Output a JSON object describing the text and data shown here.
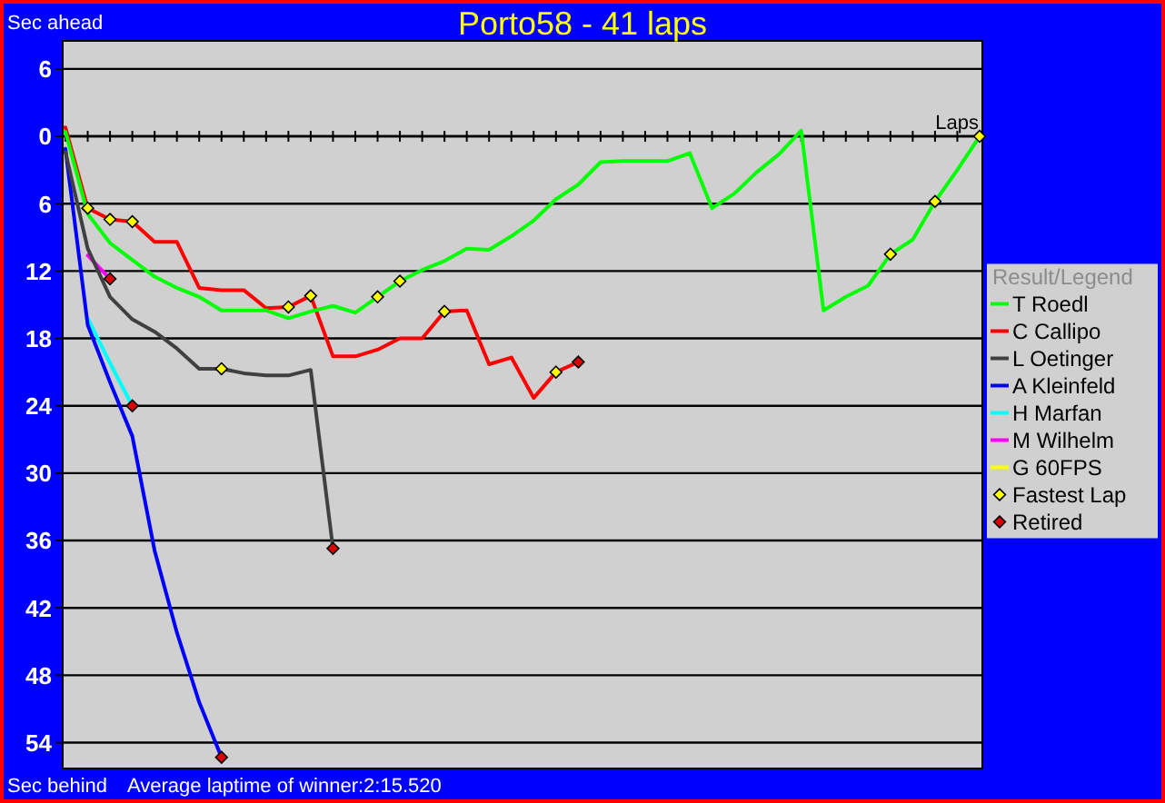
{
  "chart_data": {
    "type": "line",
    "title": "Porto58 - 41 laps",
    "xlabel": "Laps",
    "ylabel": "Sec ahead",
    "annotations": [
      "Sec behind",
      "Average laptime of winner:2:15.520"
    ],
    "categories": [
      null,
      null,
      null,
      null,
      null,
      null,
      null,
      null,
      null,
      null,
      null,
      null,
      null,
      null,
      null,
      null,
      null,
      null,
      null,
      null,
      null,
      null,
      null,
      null,
      null,
      null,
      null,
      null,
      null,
      null,
      null,
      null,
      null,
      null,
      null,
      null,
      null,
      null,
      null,
      null,
      null,
      null
    ],
    "ylim": [
      56.3,
      -8.5
    ],
    "yticks": [
      {
        "value": -6,
        "label": "6"
      },
      0,
      6,
      12,
      18,
      24,
      30,
      36,
      42,
      48,
      54
    ],
    "tick_labels": "y",
    "grid": "y",
    "legend": "right",
    "legend_title": "Result/Legend",
    "series": [
      {
        "name": "T Roedl",
        "color": "#00ff00",
        "values": [
          -0.4,
          6.9,
          9.5,
          11.0,
          12.5,
          13.5,
          14.3,
          15.5,
          15.5,
          15.5,
          16.2,
          15.6,
          15.1,
          15.7,
          14.3,
          12.9,
          11.9,
          11.1,
          10,
          10.1,
          8.9,
          7.5,
          5.6,
          4.3,
          2.3,
          2.2,
          2.2,
          2.2,
          1.5,
          6.4,
          5.1,
          3.2,
          1.6,
          -0.5,
          15.5,
          14.3,
          13.3,
          10.5,
          9.2,
          5.8,
          3.0,
          0
        ]
      },
      {
        "name": "C Callipo",
        "color": "#ff0000",
        "values": [
          -0.8,
          6.4,
          7.4,
          7.6,
          9.4,
          9.4,
          13.5,
          13.7,
          13.7,
          15.3,
          15.2,
          14.2,
          19.6,
          19.6,
          19.0,
          18.0,
          18.0,
          15.6,
          15.5,
          20.3,
          19.7,
          23.3,
          21.0,
          20.1,
          null,
          null,
          null,
          null,
          null,
          null,
          null,
          null,
          null,
          null,
          null,
          null,
          null,
          null,
          null,
          null,
          null,
          null
        ]
      },
      {
        "name": "L Oetinger",
        "color": "#404040",
        "values": [
          1.4,
          10.0,
          14.3,
          16.3,
          17.4,
          18.9,
          20.7,
          20.7,
          21.1,
          21.3,
          21.3,
          20.8,
          36.7,
          null,
          null,
          null,
          null,
          null,
          null,
          null,
          null,
          null,
          null,
          null,
          null,
          null,
          null,
          null,
          null,
          null,
          null,
          null,
          null,
          null,
          null,
          null,
          null,
          null,
          null,
          null,
          null,
          null
        ]
      },
      {
        "name": "A Kleinfeld",
        "color": "#0000ff",
        "values": [
          1.1,
          16.8,
          21.9,
          26.7,
          36.9,
          44.2,
          50.4,
          55.3,
          null,
          null,
          null,
          null,
          null,
          null,
          null,
          null,
          null,
          null,
          null,
          null,
          null,
          null,
          null,
          null,
          null,
          null,
          null,
          null,
          null,
          null,
          null,
          null,
          null,
          null,
          null,
          null,
          null,
          null,
          null,
          null,
          null,
          null
        ]
      },
      {
        "name": "H Marfan",
        "color": "#00ffff",
        "values": [
          null,
          16.2,
          20.2,
          24.0,
          null,
          null,
          null,
          null,
          null,
          null,
          null,
          null,
          null,
          null,
          null,
          null,
          null,
          null,
          null,
          null,
          null,
          null,
          null,
          null,
          null,
          null,
          null,
          null,
          null,
          null,
          null,
          null,
          null,
          null,
          null,
          null,
          null,
          null,
          null,
          null,
          null,
          null
        ]
      },
      {
        "name": "M Wilhelm",
        "color": "#ff00ff",
        "values": [
          null,
          10.6,
          12.7,
          null,
          null,
          null,
          null,
          null,
          null,
          null,
          null,
          null,
          null,
          null,
          null,
          null,
          null,
          null,
          null,
          null,
          null,
          null,
          null,
          null,
          null,
          null,
          null,
          null,
          null,
          null,
          null,
          null,
          null,
          null,
          null,
          null,
          null,
          null,
          null,
          null,
          null,
          null
        ]
      },
      {
        "name": "G 60FPS",
        "color": "#ffff00",
        "values": [
          null,
          null,
          null,
          null,
          null,
          null,
          null,
          null,
          null,
          null,
          null,
          null,
          null,
          null,
          null,
          null,
          null,
          null,
          null,
          null,
          null,
          null,
          null,
          null,
          null,
          null,
          null,
          null,
          null,
          null,
          null,
          null,
          null,
          null,
          null,
          null,
          null,
          null,
          null,
          null,
          null,
          null
        ]
      },
      {
        "name": "Fastest Lap",
        "type": "scatter",
        "marker": "diamond",
        "color": "#ffff00",
        "values": [
          null,
          6.4,
          7.4,
          7.6,
          null,
          null,
          null,
          20.7,
          null,
          null,
          15.2,
          14.2,
          null,
          null,
          14.3,
          12.9,
          null,
          15.6,
          null,
          null,
          null,
          null,
          21.0,
          null,
          null,
          null,
          null,
          null,
          null,
          null,
          null,
          null,
          null,
          null,
          null,
          null,
          null,
          10.5,
          null,
          5.8,
          null,
          0
        ]
      },
      {
        "name": "Retired",
        "type": "scatter",
        "marker": "diamond",
        "color": "#dd0000",
        "values": [
          null,
          null,
          12.7,
          24.0,
          null,
          null,
          null,
          55.3,
          null,
          null,
          null,
          null,
          36.7,
          null,
          null,
          null,
          null,
          null,
          null,
          null,
          null,
          null,
          null,
          20.1,
          null,
          null,
          null,
          null,
          null,
          null,
          null,
          null,
          null,
          null,
          null,
          null,
          null,
          null,
          null,
          null,
          null,
          null
        ]
      }
    ]
  }
}
